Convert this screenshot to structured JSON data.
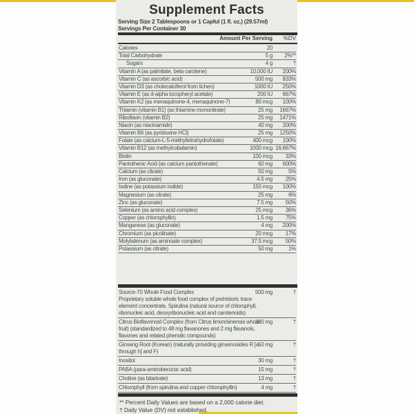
{
  "title": "Supplement Facts",
  "serving_size": "Serving Size 2 Tablespoons or 1 Capful (1 fl. oz.) (29.57ml)",
  "servings_per_container": "Servings Per Container 30",
  "header": {
    "amount": "Amount Per Serving",
    "dv": "%DV"
  },
  "nutrients": [
    {
      "name": "Calories",
      "amount": "20",
      "dv": ""
    },
    {
      "name": "Total Carbohydrate",
      "amount": "5 g",
      "dv": "2%**"
    },
    {
      "name": "Sugars",
      "amount": "4 g",
      "dv": "†",
      "indent": true
    },
    {
      "name": "Vitamin A (as palmitate, beta carotene)",
      "amount": "10,000 IU",
      "dv": "200%"
    },
    {
      "name": "Vitamin C (as ascorbic acid)",
      "amount": "500 mg",
      "dv": "833%"
    },
    {
      "name": "Vitamin D3 (as cholecalciferol from lichen)",
      "amount": "1000 IU",
      "dv": "250%"
    },
    {
      "name": "Vitamin E (as d-alpha tocopheryl acetate)",
      "amount": "200 IU",
      "dv": "667%"
    },
    {
      "name": "Vitamin K2 (as menaquinone-4, menaquinone-7)",
      "amount": "80 mcg",
      "dv": "100%"
    },
    {
      "name": "Thiamin (vitamin B1) (as thiamine mononitrate)",
      "amount": "25 mg",
      "dv": "1667%"
    },
    {
      "name": "Riboflavin (vitamin B2)",
      "amount": "25 mg",
      "dv": "1471%"
    },
    {
      "name": "Niacin (as niacinamide)",
      "amount": "40 mg",
      "dv": "200%"
    },
    {
      "name": "Vitamin B6 (as pyridoxine HCl)",
      "amount": "25 mg",
      "dv": "1250%"
    },
    {
      "name": "Folate (as calcium-L-5-methyltetrahydrofolate)",
      "amount": "400 mcg",
      "dv": "100%"
    },
    {
      "name": "Vitamin B12 (as methylcobalamin)",
      "amount": "1000 mcg",
      "dv": "16,667%"
    },
    {
      "name": "Biotin",
      "amount": "100 mcg",
      "dv": "33%"
    },
    {
      "name": "Pantothenic Acid (as calcium pantothenate)",
      "amount": "60 mg",
      "dv": "600%"
    },
    {
      "name": "Calcium (as citrate)",
      "amount": "50 mg",
      "dv": "5%"
    },
    {
      "name": "Iron (as gluconate)",
      "amount": "4.5 mg",
      "dv": "25%"
    },
    {
      "name": "Iodine (as potassium iodide)",
      "amount": "150 mcg",
      "dv": "100%"
    },
    {
      "name": "Magnesium (as citrate)",
      "amount": "25 mg",
      "dv": "6%"
    },
    {
      "name": "Zinc (as gluconate)",
      "amount": "7.5 mg",
      "dv": "50%"
    },
    {
      "name": "Selenium (as amino acid complex)",
      "amount": "25 mcg",
      "dv": "36%"
    },
    {
      "name": "Copper (as chlorophyllin)",
      "amount": "1.5 mg",
      "dv": "75%"
    },
    {
      "name": "Manganese (as gluconate)",
      "amount": "4 mg",
      "dv": "200%"
    },
    {
      "name": "Chromium (as picolinate)",
      "amount": "20 mcg",
      "dv": "17%"
    },
    {
      "name": "Molybdenum (as aminoate complex)",
      "amount": "37.5 mcg",
      "dv": "50%"
    },
    {
      "name": "Potassium (as citrate)",
      "amount": "50 mg",
      "dv": "1%"
    }
  ],
  "other": [
    {
      "name": "Source-70 Whole Food Complex",
      "desc": "Proprietary soluble whole food complex of prehistoric trace element concentrate, Spirulina (natural source of chlorophyll, ribonucleic acid, deoxyribonucleic acid and carotenoids)",
      "amount": "500 mg",
      "dv": "†"
    },
    {
      "name": "Citrus Bioflavonoid Complex (from Citrus limon/sinensis whole fruit) (standardized to 48 mg flavanones and 2 mg flavanols, flavones and related phenolic compounds)",
      "amount": "100 mg",
      "dv": "†"
    },
    {
      "name": "Ginseng Root (Korean) (naturally providing ginsenosides R [a through h] and F)",
      "amount": "50 mg",
      "dv": "†"
    },
    {
      "name": "Inositol",
      "amount": "30 mg",
      "dv": "†"
    },
    {
      "name": "PABA (para-aminobenzoic acid)",
      "amount": "15 mg",
      "dv": "†"
    },
    {
      "name": "Choline (as bitartrate)",
      "amount": "13 mg",
      "dv": "†"
    },
    {
      "name": "Chlorophyll (from spirulina and copper chlorophyllin)",
      "amount": "4 mg",
      "dv": "†"
    }
  ],
  "footnotes": [
    "** Percent Daily Values are based on a 2,000 calorie diet.",
    "† Daily Value (DV) not established."
  ]
}
